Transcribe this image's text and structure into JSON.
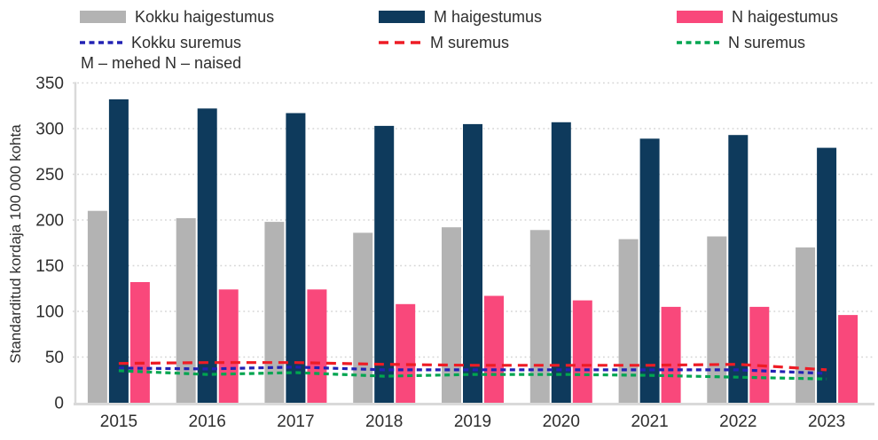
{
  "legend": {
    "items": [
      {
        "label": "Kokku haigestumus",
        "swatch": "bar",
        "color": "#b3b3b3",
        "dash": null
      },
      {
        "label": "M haigestumus",
        "swatch": "bar",
        "color": "#0e3a5c",
        "dash": null
      },
      {
        "label": "N haigestumus",
        "swatch": "bar",
        "color": "#f9487b",
        "dash": null
      },
      {
        "label": "Kokku suremus",
        "swatch": "line",
        "color": "#2222b4",
        "dash": "6 4.5"
      },
      {
        "label": "M suremus",
        "swatch": "line",
        "color": "#ee1c25",
        "dash": "11 7"
      },
      {
        "label": "N suremus",
        "swatch": "line",
        "color": "#00a550",
        "dash": "6 4.5"
      }
    ],
    "note": "M – mehed N – naised"
  },
  "chart_data": {
    "type": "bar",
    "title": "",
    "categories": [
      "2015",
      "2016",
      "2017",
      "2018",
      "2019",
      "2020",
      "2021",
      "2022",
      "2023"
    ],
    "bar_series": [
      {
        "name": "Kokku haigestumus",
        "color": "#b3b3b3",
        "values": [
          210,
          202,
          198,
          186,
          192,
          189,
          179,
          182,
          170
        ]
      },
      {
        "name": "M haigestumus",
        "color": "#0e3a5c",
        "values": [
          332,
          322,
          317,
          303,
          305,
          307,
          289,
          293,
          279
        ]
      },
      {
        "name": "N haigestumus",
        "color": "#f9487b",
        "values": [
          132,
          124,
          124,
          108,
          117,
          112,
          105,
          105,
          96
        ]
      }
    ],
    "line_series": [
      {
        "name": "Kokku suremus",
        "color": "#2222b4",
        "dash": "6 4.5",
        "values": [
          38,
          37,
          39,
          36,
          36,
          36,
          36,
          36,
          32
        ]
      },
      {
        "name": "M suremus",
        "color": "#ee1c25",
        "dash": "11 7",
        "values": [
          43,
          44,
          44,
          42,
          41,
          41,
          41,
          42,
          36
        ]
      },
      {
        "name": "N suremus",
        "color": "#00a550",
        "dash": "6 4.5",
        "values": [
          35,
          31,
          33,
          29,
          31,
          31,
          30,
          28,
          26
        ]
      }
    ],
    "xlabel": "",
    "ylabel": "Standarditud kordaja 100 000 kohta",
    "ylim": [
      0,
      350
    ],
    "yticks": [
      0,
      50,
      100,
      150,
      200,
      250,
      300,
      350
    ],
    "legend_position": "top",
    "grid": "horizontal-dotted",
    "note": "M – mehed N – naised",
    "text_color": "#2e2e2e",
    "grid_color": "#d6d6d6",
    "axis_color": "#d9d9d9"
  }
}
